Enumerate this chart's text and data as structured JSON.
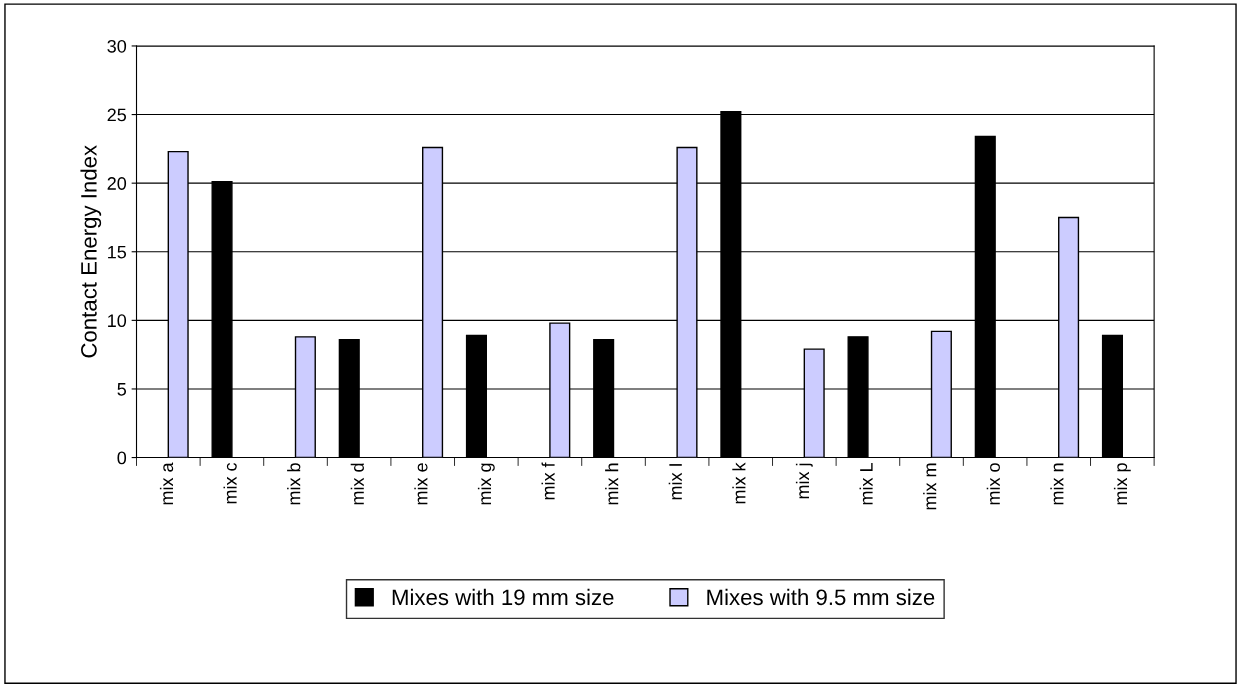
{
  "chart_data": {
    "type": "bar",
    "ylabel": "Contact Energy Index",
    "categories": [
      "mix a",
      "mix c",
      "mix b",
      "mix d",
      "mix e",
      "mix g",
      "mix f",
      "mix h",
      "mix I",
      "mix k",
      "mix j",
      "mix L",
      "mix m",
      "mix o",
      "mix n",
      "mix p"
    ],
    "series": [
      {
        "name": "Mixes with 19 mm size",
        "color": "#000000",
        "values": [
          null,
          20.1,
          null,
          8.6,
          null,
          8.9,
          null,
          8.6,
          null,
          25.2,
          null,
          8.8,
          null,
          23.4,
          null,
          8.9
        ]
      },
      {
        "name": "Mixes with 9.5 mm size",
        "color": "#ccccff",
        "values": [
          22.3,
          null,
          8.8,
          null,
          22.6,
          null,
          9.8,
          null,
          22.6,
          null,
          7.9,
          null,
          9.2,
          null,
          17.5,
          null
        ]
      }
    ],
    "ylim": [
      0,
      30
    ],
    "yticks": [
      0,
      5,
      10,
      15,
      20,
      25,
      30
    ],
    "grid": "y",
    "legend": "bottom"
  }
}
